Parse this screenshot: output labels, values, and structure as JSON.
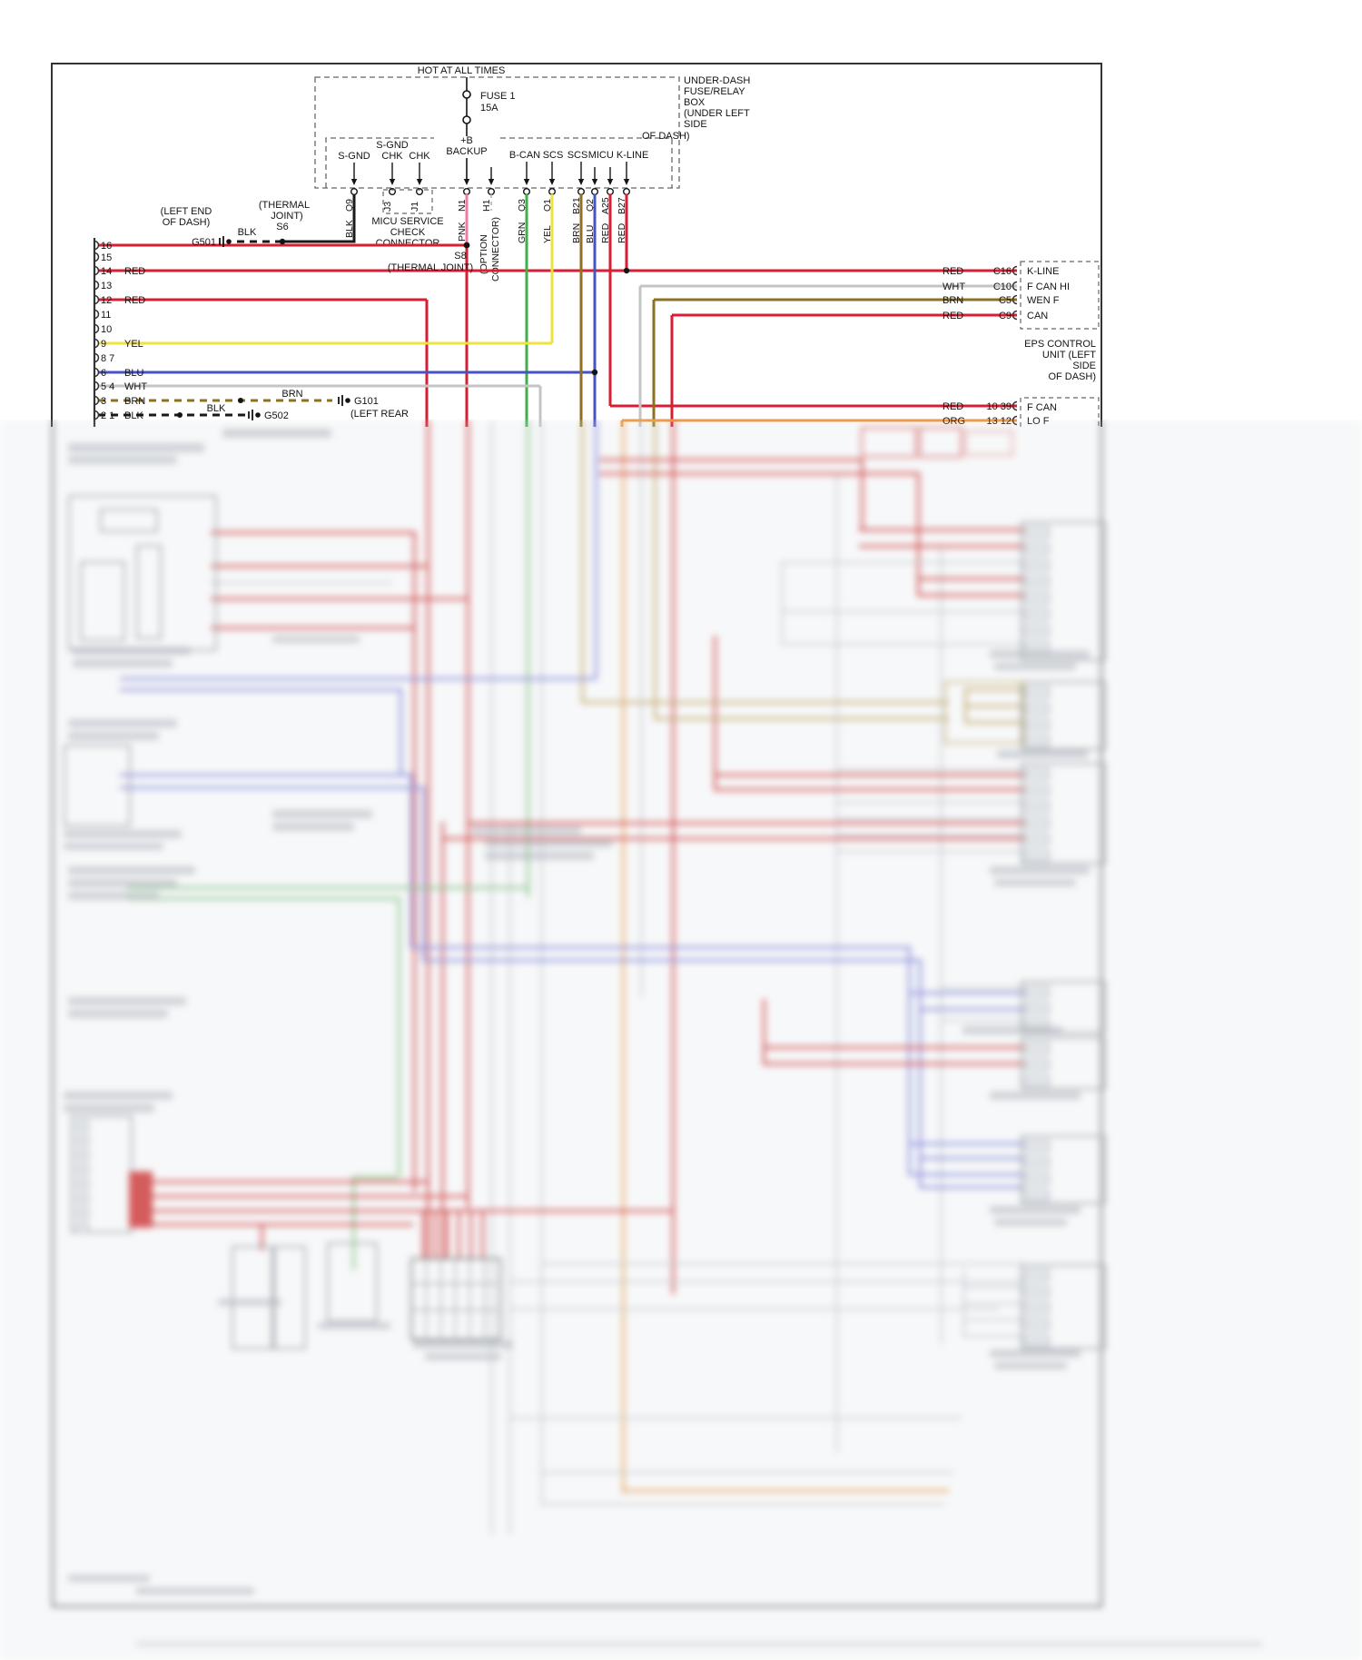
{
  "header": {
    "hot_label": "HOT AT ALL TIMES"
  },
  "fusebox": {
    "label": [
      "UNDER-DASH",
      "FUSE/RELAY",
      "BOX",
      "(UNDER LEFT",
      "SIDE",
      "OF DASH)"
    ],
    "fuse_name": "FUSE 1",
    "fuse_rating": "15A",
    "feed_line1": "+B",
    "feed_line2": "BACKUP",
    "terminals": [
      "S-GND",
      "S-GND",
      "CHK",
      "CHK",
      "B-CAN",
      "SCS",
      "SCS",
      "MICU K-LINE"
    ]
  },
  "service_connector": {
    "label": [
      "MICU SERVICE",
      "CHECK",
      "CONNECTOR"
    ]
  },
  "pins": {
    "q9": "Q9",
    "j3": "J3",
    "j1": "J1",
    "n1": "N1",
    "h1": "H1",
    "q3": "Q3",
    "q1": "Q1",
    "b21": "B21",
    "q2": "Q2",
    "a25": "A25",
    "b27": "B27"
  },
  "wire_labels": {
    "blk": "BLK",
    "pnk": "PNK",
    "opt1": "(OPTION",
    "opt2": "CONNECTOR)",
    "grn": "GRN",
    "yel": "YEL",
    "brn": "BRN",
    "blu": "BLU",
    "red1": "RED",
    "red2": "RED"
  },
  "grounds": {
    "left_end1": "(LEFT END",
    "left_end2": "OF DASH)",
    "g501": "G501",
    "blk_seg": "BLK",
    "thermal1": "(THERMAL",
    "thermal2": "JOINT)",
    "s6": "S6",
    "s8": "S8",
    "s8_note": "(THERMAL JOINT)",
    "g101": "G101",
    "g101_note": "(LEFT REAR",
    "brn_seg": "BRN",
    "g502": "G502",
    "blk_seg2": "BLK"
  },
  "dlc": {
    "pins": [
      "16",
      "15",
      "14",
      "13",
      "12",
      "11",
      "10",
      "9",
      "8 7",
      "6",
      "5 4",
      "3",
      "2 1"
    ],
    "w14": "RED",
    "w12": "RED",
    "w9": "YEL",
    "w6": "BLU",
    "w54": "WHT",
    "w3": "BRN",
    "w21": "BLK"
  },
  "eps": {
    "rows": [
      {
        "color": "RED",
        "pin": "C16",
        "signal": "K-LINE"
      },
      {
        "color": "WHT",
        "pin": "C10",
        "signal": "F CAN HI"
      },
      {
        "color": "BRN",
        "pin": "C5",
        "signal": "WEN F"
      },
      {
        "color": "RED",
        "pin": "C9",
        "signal": "CAN"
      }
    ],
    "name": [
      "EPS CONTROL",
      "UNIT (LEFT",
      "SIDE",
      "OF DASH)"
    ]
  },
  "fcan": {
    "rows": [
      {
        "color": "RED",
        "pin": "10 39"
      },
      {
        "color": "ORG",
        "pin": "13 12"
      }
    ],
    "label": [
      "F CAN",
      "LO F"
    ]
  },
  "colors": {
    "red": "#d81e32",
    "pink": "#f27da0",
    "green": "#3fae4c",
    "yellow": "#efe23c",
    "brown": "#8d7120",
    "blue": "#4553c5",
    "gray": "#c4c4c4",
    "black": "#1a1a1a",
    "orange": "#f2953a"
  }
}
